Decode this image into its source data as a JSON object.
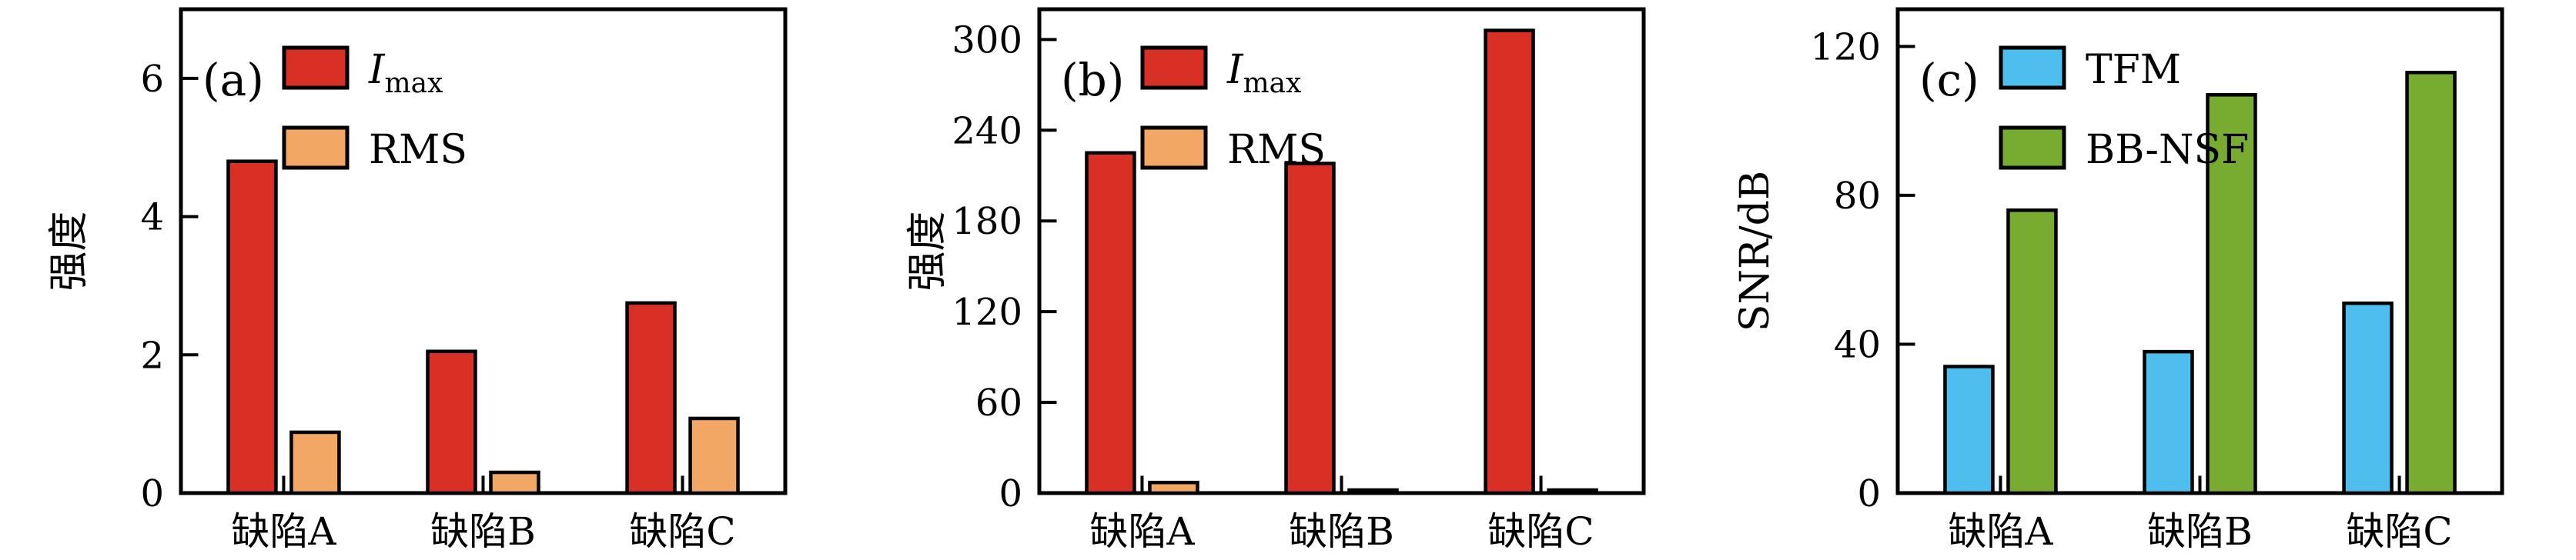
{
  "figure": {
    "background": "#ffffff",
    "text_color": "#000000",
    "axis_color": "#000000",
    "bar_edge_color": "#000000"
  },
  "chart_data": [
    {
      "type": "bar",
      "panel_label": "(a)",
      "ylabel": "强度",
      "xlabel": "",
      "categories": [
        "缺陷A",
        "缺陷B",
        "缺陷C"
      ],
      "series": [
        {
          "name": "Imax",
          "legend_main": "I",
          "legend_sub": "max",
          "legend_italic": true,
          "color": "#d93025",
          "values": [
            4.8,
            2.05,
            2.75
          ]
        },
        {
          "name": "RMS",
          "legend_main": "RMS",
          "legend_sub": "",
          "legend_italic": false,
          "color": "#f3a765",
          "values": [
            0.88,
            0.3,
            1.08
          ]
        }
      ],
      "ylim": [
        0,
        7
      ],
      "yticks": [
        0,
        2,
        4,
        6
      ],
      "grid": false,
      "legend_position": "top-left"
    },
    {
      "type": "bar",
      "panel_label": "(b)",
      "ylabel": "强度",
      "xlabel": "",
      "categories": [
        "缺陷A",
        "缺陷B",
        "缺陷C"
      ],
      "series": [
        {
          "name": "Imax",
          "legend_main": "I",
          "legend_sub": "max",
          "legend_italic": true,
          "color": "#d93025",
          "values": [
            225,
            218,
            306
          ]
        },
        {
          "name": "RMS",
          "legend_main": "RMS",
          "legend_sub": "",
          "legend_italic": false,
          "color": "#f3a765",
          "values": [
            7,
            2,
            2
          ]
        }
      ],
      "ylim": [
        0,
        320
      ],
      "yticks": [
        0,
        60,
        120,
        180,
        240,
        300
      ],
      "grid": false,
      "legend_position": "top-left"
    },
    {
      "type": "bar",
      "panel_label": "(c)",
      "ylabel": "SNR/dB",
      "xlabel": "",
      "categories": [
        "缺陷A",
        "缺陷B",
        "缺陷C"
      ],
      "series": [
        {
          "name": "TFM",
          "legend_main": "TFM",
          "legend_sub": "",
          "legend_italic": false,
          "color": "#4dbeee",
          "values": [
            34,
            38,
            51
          ]
        },
        {
          "name": "BB-NSF",
          "legend_main": "BB-NSF",
          "legend_sub": "",
          "legend_italic": false,
          "color": "#78ac30",
          "values": [
            76,
            107,
            113
          ]
        }
      ],
      "ylim": [
        0,
        130
      ],
      "yticks": [
        0,
        40,
        80,
        120
      ],
      "grid": false,
      "legend_position": "top-left"
    }
  ]
}
